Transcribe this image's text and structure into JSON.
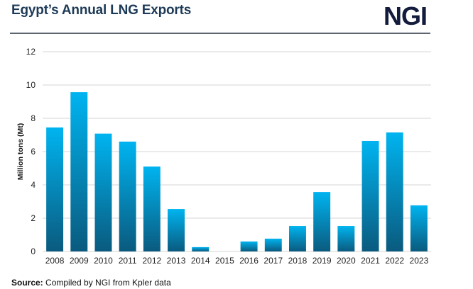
{
  "header": {
    "title": "Egypt’s Annual LNG Exports",
    "logo": "NGI"
  },
  "footer": {
    "source_label": "Source:",
    "source_text": " Compiled by NGI from Kpler data"
  },
  "colors": {
    "bar_top": "#00b4f0",
    "bar_bottom": "#0a5a7e",
    "grid": "#e3e3e3",
    "title": "#1d3a57",
    "logo": "#141c3e"
  },
  "chart_data": {
    "type": "bar",
    "title": "Egypt’s Annual LNG Exports",
    "xlabel": "",
    "ylabel": "Million tons (Mt)",
    "ylim": [
      0,
      12
    ],
    "yticks": [
      0,
      2,
      4,
      6,
      8,
      10,
      12
    ],
    "grid": true,
    "legend": "none",
    "categories": [
      "2008",
      "2009",
      "2010",
      "2011",
      "2012",
      "2013",
      "2014",
      "2015",
      "2016",
      "2017",
      "2018",
      "2019",
      "2020",
      "2021",
      "2022",
      "2023"
    ],
    "values": [
      7.45,
      9.57,
      7.08,
      6.6,
      5.1,
      2.55,
      0.26,
      0,
      0.6,
      0.77,
      1.53,
      3.57,
      1.53,
      6.64,
      7.15,
      2.77
    ]
  }
}
